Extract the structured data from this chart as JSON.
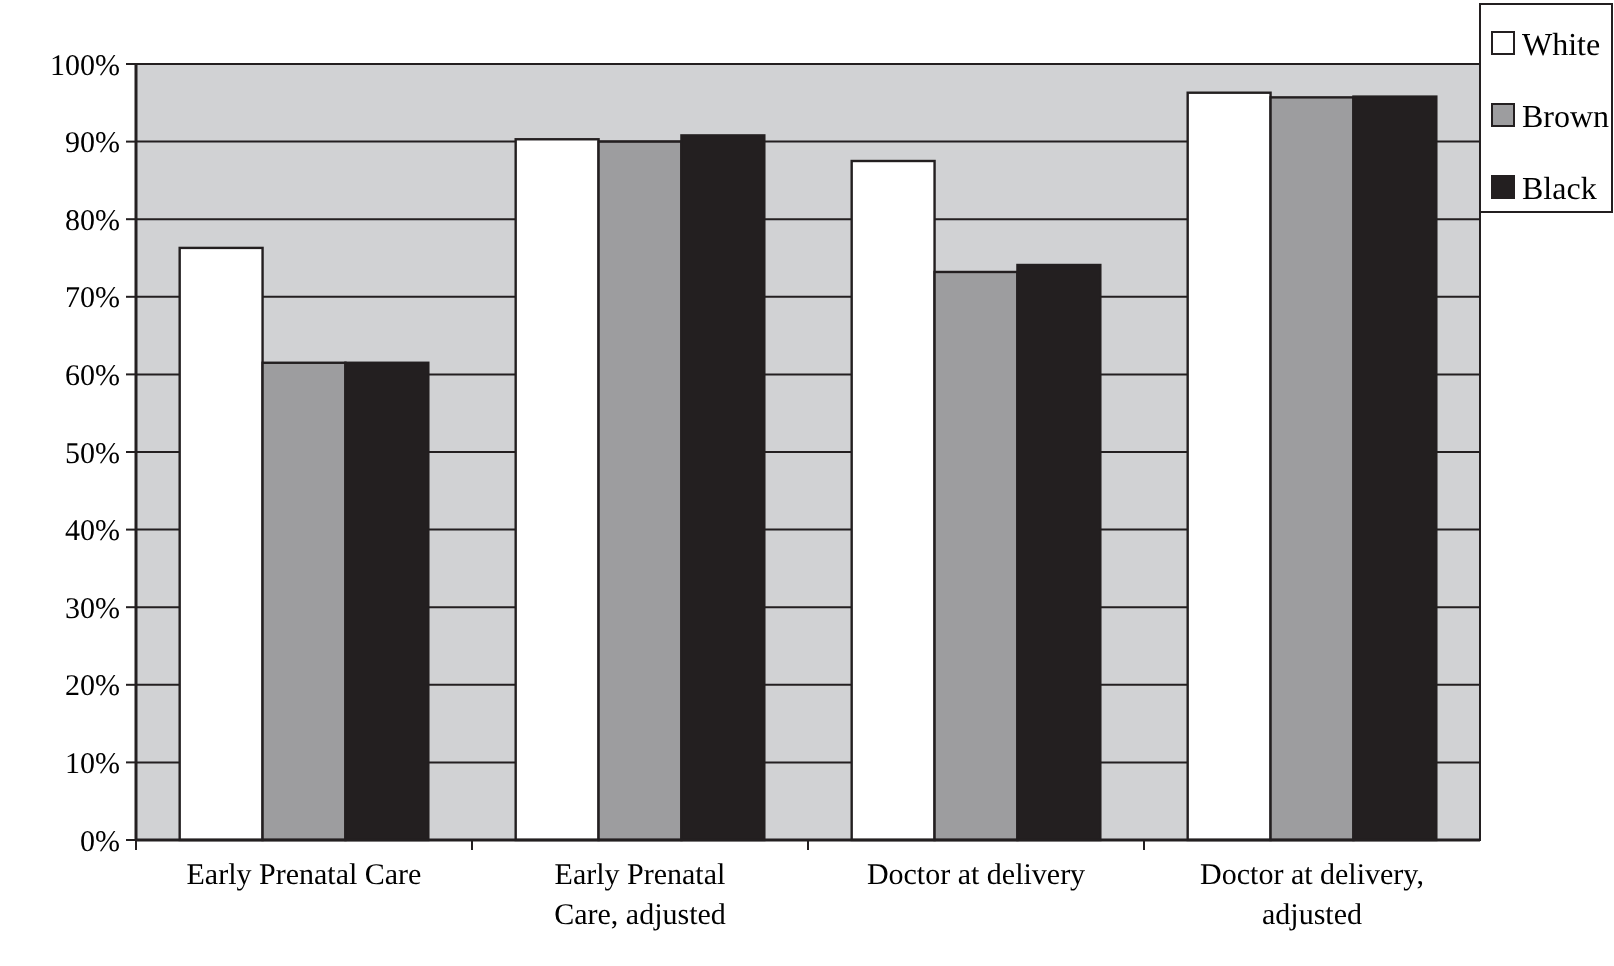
{
  "chart_data": {
    "type": "bar",
    "categories": [
      "Early Prenatal Care",
      "Early Prenatal Care, adjusted",
      "Doctor at delivery",
      "Doctor at delivery, adjusted"
    ],
    "series": [
      {
        "name": "White",
        "color": "#ffffff",
        "values": [
          76.3,
          90.3,
          87.5,
          96.3
        ]
      },
      {
        "name": "Brown",
        "color": "#9d9d9f",
        "values": [
          61.5,
          90,
          73.2,
          95.7
        ]
      },
      {
        "name": "Black",
        "color": "#231f20",
        "values": [
          61.5,
          90.8,
          74.1,
          95.8
        ]
      }
    ],
    "ylim": [
      0,
      100
    ],
    "yticks": [
      {
        "value": 0,
        "label": "0%"
      },
      {
        "value": 10,
        "label": "10%"
      },
      {
        "value": 20,
        "label": "20%"
      },
      {
        "value": 30,
        "label": "30%"
      },
      {
        "value": 40,
        "label": "40%"
      },
      {
        "value": 50,
        "label": "50%"
      },
      {
        "value": 60,
        "label": "60%"
      },
      {
        "value": 70,
        "label": "70%"
      },
      {
        "value": 80,
        "label": "80%"
      },
      {
        "value": 90,
        "label": "90%"
      },
      {
        "value": 100,
        "label": "100%"
      }
    ],
    "grid": "y",
    "legend": "top right"
  }
}
